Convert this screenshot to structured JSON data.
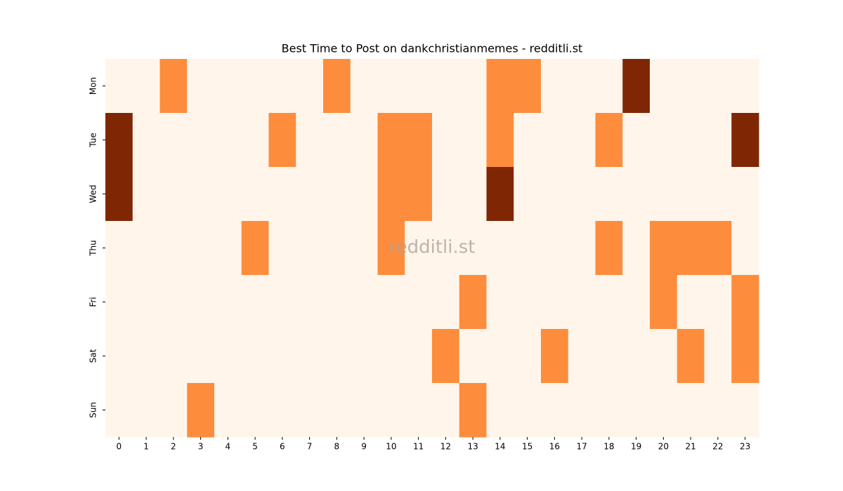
{
  "chart_data": {
    "type": "heatmap",
    "title": "Best Time to Post on dankchristianmemes - redditli.st",
    "annotation": "redditli.st",
    "x": [
      0,
      1,
      2,
      3,
      4,
      5,
      6,
      7,
      8,
      9,
      10,
      11,
      12,
      13,
      14,
      15,
      16,
      17,
      18,
      19,
      20,
      21,
      22,
      23
    ],
    "y": [
      "Mon",
      "Tue",
      "Wed",
      "Thu",
      "Fri",
      "Sat",
      "Sun"
    ],
    "values": [
      [
        0,
        0,
        1,
        0,
        0,
        0,
        0,
        0,
        1,
        0,
        0,
        0,
        0,
        0,
        1,
        1,
        0,
        0,
        0,
        2,
        0,
        0,
        0,
        0
      ],
      [
        2,
        0,
        0,
        0,
        0,
        0,
        1,
        0,
        0,
        0,
        1,
        1,
        0,
        0,
        1,
        0,
        0,
        0,
        1,
        0,
        0,
        0,
        0,
        2
      ],
      [
        2,
        0,
        0,
        0,
        0,
        0,
        0,
        0,
        0,
        0,
        1,
        1,
        0,
        0,
        2,
        0,
        0,
        0,
        0,
        0,
        0,
        0,
        0,
        0
      ],
      [
        0,
        0,
        0,
        0,
        0,
        1,
        0,
        0,
        0,
        0,
        1,
        0,
        0,
        0,
        0,
        0,
        0,
        0,
        1,
        0,
        1,
        1,
        1,
        0
      ],
      [
        0,
        0,
        0,
        0,
        0,
        0,
        0,
        0,
        0,
        0,
        0,
        0,
        0,
        1,
        0,
        0,
        0,
        0,
        0,
        0,
        1,
        0,
        0,
        1
      ],
      [
        0,
        0,
        0,
        0,
        0,
        0,
        0,
        0,
        0,
        0,
        0,
        0,
        1,
        0,
        0,
        0,
        1,
        0,
        0,
        0,
        0,
        1,
        0,
        1
      ],
      [
        0,
        0,
        0,
        1,
        0,
        0,
        0,
        0,
        0,
        0,
        0,
        0,
        0,
        1,
        0,
        0,
        0,
        0,
        0,
        0,
        0,
        0,
        0,
        0
      ]
    ],
    "color_scale": [
      {
        "value": 0,
        "color": "#fff5eb"
      },
      {
        "value": 1,
        "color": "#fd8d3c"
      },
      {
        "value": 2,
        "color": "#7f2704"
      }
    ]
  }
}
